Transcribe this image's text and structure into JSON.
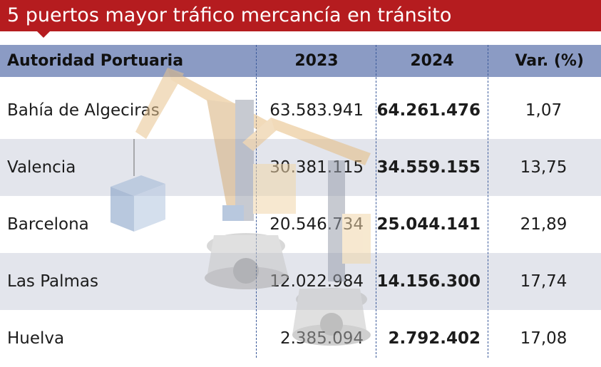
{
  "title": "5 puertos mayor tráfico mercancía en tránsito",
  "header": {
    "col_name": "Autoridad Portuaria",
    "col_2023": "2023",
    "col_2024": "2024",
    "col_var": "Var. (%)"
  },
  "rows": [
    {
      "name": "Bahía de Algeciras",
      "y2023": "63.583.941",
      "y2024": "64.261.476",
      "var": "1,07"
    },
    {
      "name": "Valencia",
      "y2023": "30.381.115",
      "y2024": "34.559.155",
      "var": "13,75"
    },
    {
      "name": "Barcelona",
      "y2023": "20.546.734",
      "y2024": "25.044.141",
      "var": "21,89"
    },
    {
      "name": "Las Palmas",
      "y2023": "12.022.984",
      "y2024": "14.156.300",
      "var": "17,74"
    },
    {
      "name": "Huelva",
      "y2023": "2.385.094",
      "y2024": "2.792.402",
      "var": "17,08"
    }
  ],
  "colors": {
    "title_bg": "#b51c1f",
    "header_bg": "#8b9bc4",
    "row_shade": "#e3e5ec",
    "divider": "#3b5a9a"
  },
  "illustration": "port-crane-watermark"
}
